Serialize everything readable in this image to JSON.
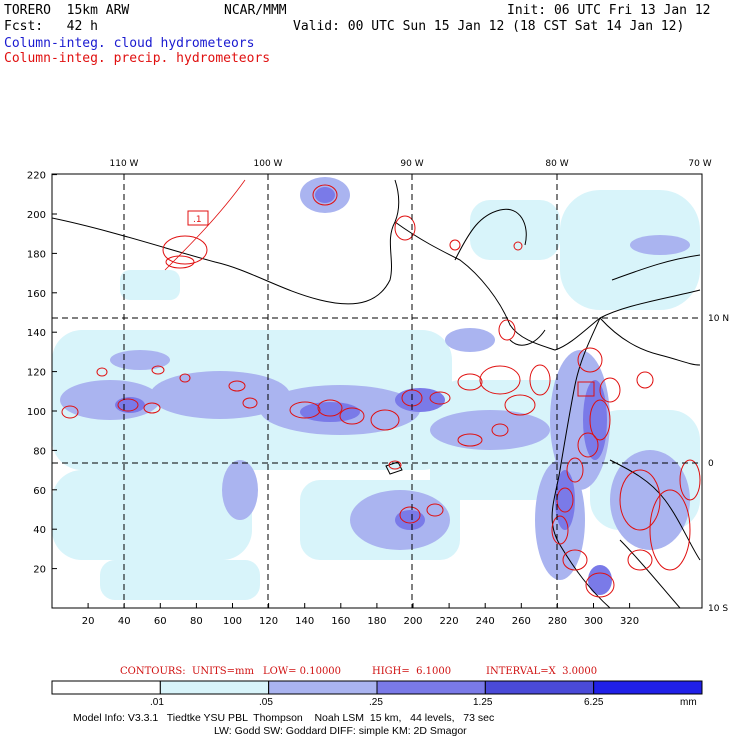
{
  "header": {
    "model": "TORERO  15km ARW",
    "org": "NCAR/MMM",
    "init": "Init: 06 UTC Fri 13 Jan 12",
    "fcst": "Fcst:   42 h",
    "valid": "Valid: 00 UTC Sun 15 Jan 12 (18 CST Sat 14 Jan 12)",
    "field1": "Column-integ. cloud hydrometeors",
    "field2": "Column-integ. precip. hydrometeors",
    "field1_color": "#1a1ad0",
    "field2_color": "#e01010"
  },
  "map": {
    "lon_labels": [
      "110 W",
      "100 W",
      "90 W",
      "80 W",
      "70 W"
    ],
    "lat_labels": [
      "10 N",
      "0",
      "10 S"
    ],
    "x_ticks": [
      "20",
      "40",
      "60",
      "80",
      "100",
      "120",
      "140",
      "160",
      "180",
      "200",
      "220",
      "240",
      "260",
      "280",
      "300",
      "320"
    ],
    "y_ticks": [
      "20",
      "40",
      "60",
      "80",
      "100",
      "120",
      "140",
      "160",
      "180",
      "200",
      "220"
    ],
    "contour_label": ".1"
  },
  "contours": {
    "units": "CONTOURS:  UNITS=mm",
    "low": "LOW= 0.10000",
    "high": "HIGH=  6.1000",
    "interval": "INTERVAL=X  3.0000"
  },
  "colorbar": {
    "labels": [
      ".01",
      ".05",
      ".25",
      "1.25",
      "6.25"
    ],
    "unit": "mm",
    "colors": [
      "#ffffff",
      "#d8f4fa",
      "#aab4f0",
      "#7a7ae8",
      "#4a4ad8",
      "#2020e8"
    ]
  },
  "model_info": {
    "line1": "Model Info: V3.3.1   Tiedtke YSU PBL  Thompson    Noah LSM  15 km,   44 levels,   73 sec",
    "line2": "LW: Godd SW: Goddard DIFF: simple KM: 2D Smagor"
  }
}
